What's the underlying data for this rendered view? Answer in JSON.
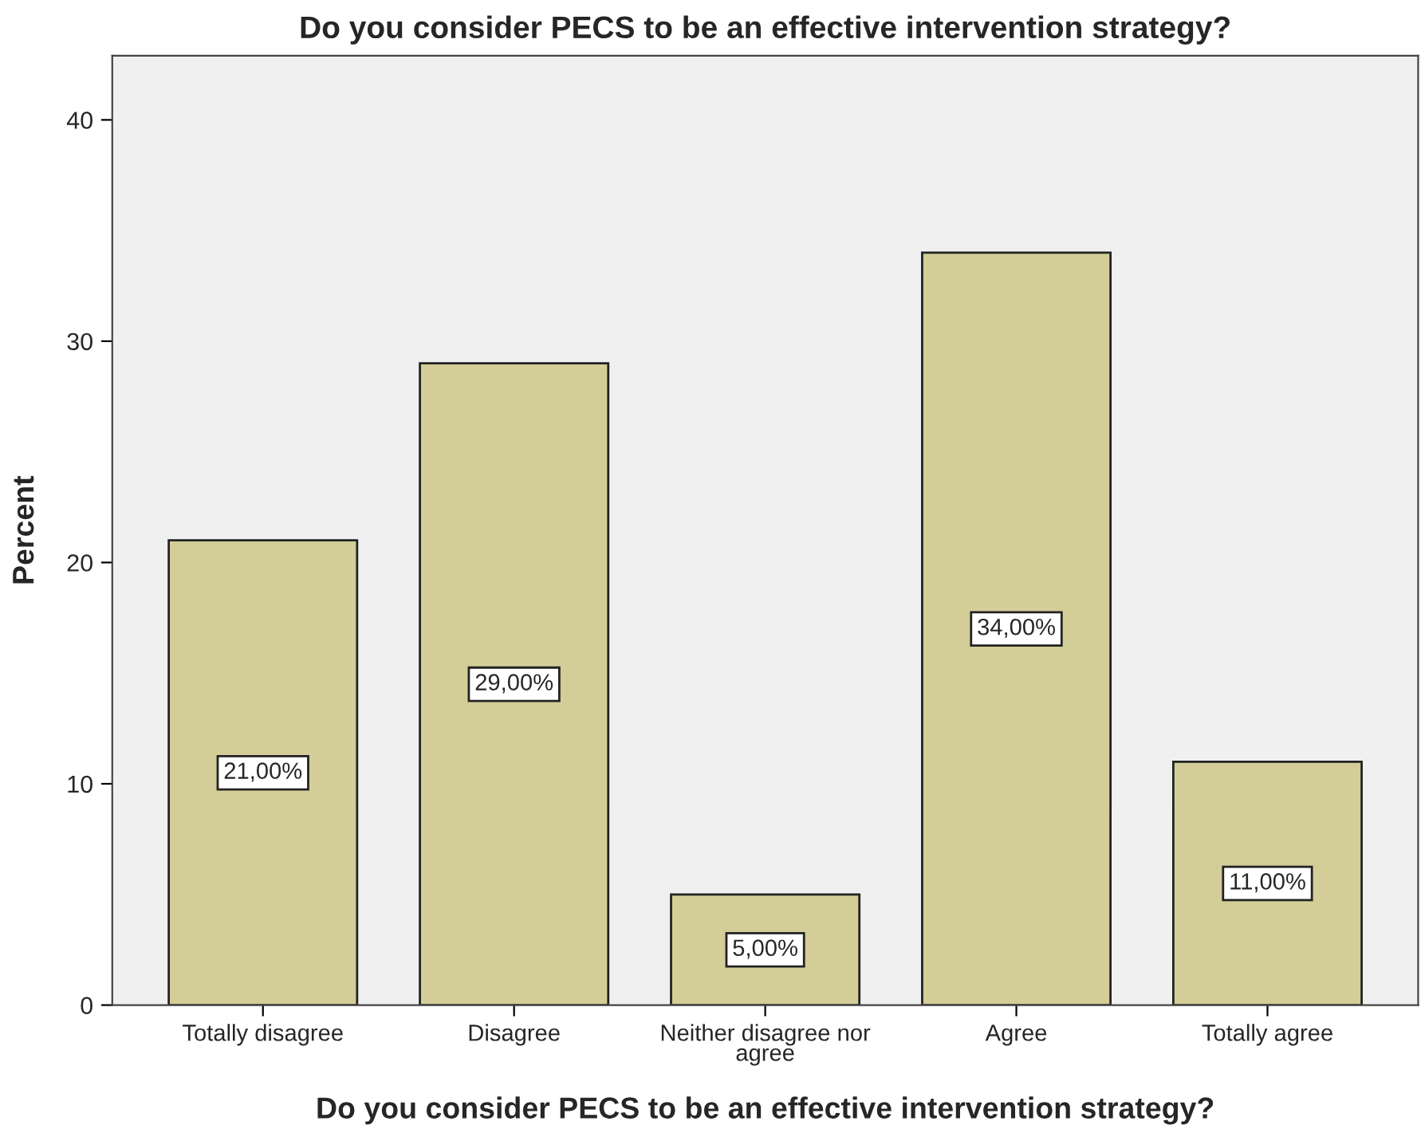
{
  "chart_data": {
    "type": "bar",
    "title": "Do you consider PECS to be an effective intervention strategy?",
    "xlabel": "Do you consider PECS to be an effective intervention strategy?",
    "ylabel": "Percent",
    "categories": [
      "Totally disagree",
      "Disagree",
      "Neither disagree nor\nagree",
      "Agree",
      "Totally agree"
    ],
    "values": [
      21,
      29,
      5,
      34,
      11
    ],
    "value_labels": [
      "21,00%",
      "29,00%",
      "5,00%",
      "34,00%",
      "11,00%"
    ],
    "color": "#d3ce97",
    "ylim": [
      0,
      42.9
    ],
    "yticks": [
      0,
      10,
      20,
      30,
      40
    ],
    "grid": false,
    "legend": false
  }
}
